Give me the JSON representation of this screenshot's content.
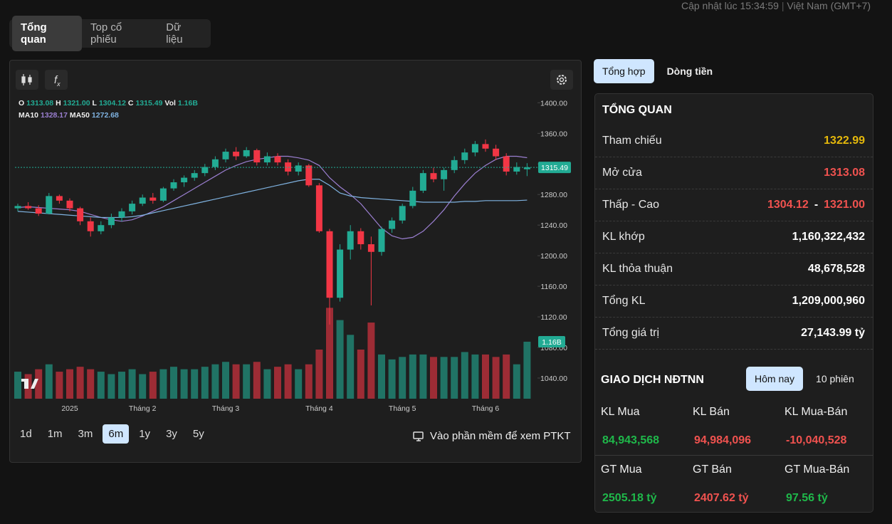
{
  "header": {
    "update_time": "Cập nhật lúc 15:34:59",
    "timezone": "Việt Nam (GMT+7)"
  },
  "tabs": [
    "Tổng quan",
    "Top cổ phiếu",
    "Dữ liệu"
  ],
  "active_tab": 0,
  "chart_data": {
    "type": "candlestick",
    "legend": [
      {
        "key": "O",
        "value": "1313.08"
      },
      {
        "key": "H",
        "value": "1321.00"
      },
      {
        "key": "L",
        "value": "1304.12"
      },
      {
        "key": "C",
        "value": "1315.49"
      },
      {
        "key": "Vol",
        "value": "1.16B"
      }
    ],
    "ma_legend": [
      {
        "name": "MA10",
        "value": "1328.17",
        "color": "#9b7fd1"
      },
      {
        "name": "MA50",
        "value": "1272.68",
        "color": "#7fb2e0"
      }
    ],
    "categories": [
      null,
      null,
      null,
      null,
      null,
      "2025",
      null,
      null,
      null,
      null,
      null,
      null,
      "Tháng 2",
      null,
      null,
      null,
      null,
      null,
      null,
      null,
      "Tháng 3",
      null,
      null,
      null,
      null,
      null,
      null,
      null,
      null,
      "Tháng 4",
      null,
      null,
      null,
      null,
      null,
      null,
      null,
      "Tháng 5",
      null,
      null,
      null,
      null,
      null,
      null,
      null,
      "Tháng 6",
      null,
      null,
      null,
      null
    ],
    "open": [
      1262,
      1265,
      1262,
      1255,
      1278,
      1272,
      1262,
      1245,
      1232,
      1240,
      1250,
      1258,
      1268,
      1276,
      1272,
      1288,
      1296,
      1302,
      1308,
      1316,
      1326,
      1336,
      1330,
      1338,
      1322,
      1330,
      1322,
      1310,
      1318,
      1292,
      1232,
      1145,
      1208,
      1232,
      1215,
      1205,
      1235,
      1246,
      1265,
      1285,
      1308,
      1300,
      1312,
      1325,
      1335,
      1346,
      1340,
      1330,
      1310,
      1313.08
    ],
    "high": [
      1268,
      1270,
      1266,
      1282,
      1280,
      1275,
      1264,
      1250,
      1245,
      1255,
      1262,
      1272,
      1280,
      1282,
      1290,
      1300,
      1305,
      1312,
      1320,
      1330,
      1340,
      1342,
      1342,
      1340,
      1335,
      1334,
      1326,
      1322,
      1320,
      1295,
      1235,
      1215,
      1240,
      1236,
      1225,
      1238,
      1250,
      1268,
      1290,
      1312,
      1315,
      1315,
      1330,
      1340,
      1350,
      1352,
      1345,
      1334,
      1322,
      1321
    ],
    "low": [
      1258,
      1260,
      1252,
      1254,
      1268,
      1258,
      1240,
      1225,
      1228,
      1236,
      1245,
      1254,
      1265,
      1268,
      1270,
      1285,
      1290,
      1298,
      1304,
      1312,
      1322,
      1325,
      1328,
      1318,
      1318,
      1318,
      1305,
      1305,
      1290,
      1230,
      1110,
      1140,
      1195,
      1208,
      1135,
      1200,
      1230,
      1242,
      1262,
      1282,
      1296,
      1285,
      1308,
      1320,
      1330,
      1336,
      1325,
      1305,
      1306,
      1304.12
    ],
    "close": [
      1265,
      1262,
      1255,
      1278,
      1272,
      1262,
      1245,
      1232,
      1240,
      1250,
      1258,
      1268,
      1276,
      1272,
      1288,
      1296,
      1302,
      1308,
      1316,
      1326,
      1336,
      1330,
      1338,
      1322,
      1330,
      1322,
      1310,
      1318,
      1292,
      1232,
      1145,
      1208,
      1232,
      1215,
      1205,
      1235,
      1246,
      1265,
      1285,
      1308,
      1300,
      1312,
      1325,
      1335,
      1346,
      1340,
      1330,
      1310,
      1316,
      1315.49
    ],
    "volume": [
      0.55,
      0.5,
      0.6,
      0.7,
      0.55,
      0.6,
      0.65,
      0.6,
      0.55,
      0.5,
      0.55,
      0.6,
      0.5,
      0.55,
      0.6,
      0.65,
      0.6,
      0.6,
      0.65,
      0.7,
      0.75,
      0.7,
      0.7,
      0.75,
      0.6,
      0.65,
      0.7,
      0.6,
      0.7,
      1.0,
      1.85,
      1.6,
      1.3,
      1.0,
      1.55,
      0.9,
      0.8,
      0.85,
      0.9,
      0.9,
      0.85,
      0.85,
      0.85,
      0.95,
      0.9,
      0.9,
      0.85,
      0.9,
      0.7,
      1.16
    ],
    "ma10": [
      1263,
      1264,
      1263,
      1262,
      1261,
      1260,
      1258,
      1254,
      1250,
      1247,
      1245,
      1247,
      1252,
      1258,
      1264,
      1272,
      1280,
      1288,
      1296,
      1304,
      1312,
      1318,
      1323,
      1326,
      1328,
      1330,
      1330,
      1328,
      1325,
      1318,
      1302,
      1290,
      1280,
      1268,
      1252,
      1236,
      1226,
      1222,
      1224,
      1232,
      1245,
      1260,
      1278,
      1294,
      1308,
      1318,
      1326,
      1330,
      1330,
      1328.17
    ],
    "ma50": [
      1258,
      1257,
      1256,
      1255,
      1254,
      1253,
      1252,
      1251,
      1250,
      1250,
      1250,
      1251,
      1253,
      1256,
      1259,
      1262,
      1265,
      1268,
      1271,
      1274,
      1277,
      1280,
      1283,
      1286,
      1289,
      1292,
      1295,
      1298,
      1300,
      1300,
      1292,
      1282,
      1278,
      1276,
      1275,
      1274,
      1273,
      1272,
      1271,
      1270,
      1270,
      1270,
      1270,
      1271,
      1271,
      1272,
      1272,
      1272,
      1272,
      1272.68
    ],
    "ylim": [
      1013,
      1418
    ],
    "yticks": [
      {
        "value": 1400,
        "label": "1400.00"
      },
      {
        "value": 1360,
        "label": "1360.00"
      },
      {
        "value": 1320,
        "label": "1320.00"
      },
      {
        "value": 1280,
        "label": "1280.00"
      },
      {
        "value": 1240,
        "label": "1240.00"
      },
      {
        "value": 1200,
        "label": "1200.00"
      },
      {
        "value": 1160,
        "label": "1160.00"
      },
      {
        "value": 1120,
        "label": "1120.00"
      },
      {
        "value": 1080,
        "label": "1080.00"
      },
      {
        "value": 1040,
        "label": "1040.00"
      }
    ],
    "volume_ylim": [
      0,
      5
    ],
    "up_color": "#22ab94",
    "down_color": "#f23645",
    "last_price_label": "1315.49",
    "last_volume_label": "1.16B",
    "ranges": [
      "1d",
      "1m",
      "3m",
      "6m",
      "1y",
      "3y",
      "5y"
    ],
    "active_range": 3,
    "link": "Vào phần mềm để xem PTKT"
  },
  "summary": {
    "tabs": [
      "Tổng hợp",
      "Dòng tiền"
    ],
    "title": "TỔNG QUAN",
    "rows": [
      {
        "label": "Tham chiếu",
        "value": "1322.99",
        "color": "#e5b80b"
      },
      {
        "label": "Mở cửa",
        "value": "1313.08",
        "color": "#f0524f"
      },
      {
        "label": "Thấp - Cao",
        "value": "1304.12",
        "separator": "-",
        "value2": "1321.00",
        "color": "#f0524f"
      },
      {
        "label": "KL khớp",
        "value": "1,160,322,432",
        "color": "#ffffff"
      },
      {
        "label": "KL thỏa thuận",
        "value": "48,678,528",
        "color": "#ffffff"
      },
      {
        "label": "Tổng KL",
        "value": "1,209,000,960",
        "color": "#ffffff"
      },
      {
        "label": "Tổng giá trị",
        "value": "27,143.99 tỷ",
        "color": "#ffffff"
      }
    ]
  },
  "foreign": {
    "title": "GIAO DỊCH NĐTNN",
    "tabs": [
      "Hôm nay",
      "10 phiên"
    ],
    "items": [
      {
        "label": "KL Mua",
        "value": "84,943,568",
        "color": "#1fb84a"
      },
      {
        "label": "KL Bán",
        "value": "94,984,096",
        "color": "#f0524f"
      },
      {
        "label": "KL Mua-Bán",
        "value": "-10,040,528",
        "color": "#f0524f"
      },
      {
        "label": "GT Mua",
        "value": "2505.18 tỷ",
        "color": "#1fb84a"
      },
      {
        "label": "GT Bán",
        "value": "2407.62 tỷ",
        "color": "#f0524f"
      },
      {
        "label": "GT Mua-Bán",
        "value": "97.56 tỷ",
        "color": "#1fb84a"
      }
    ]
  }
}
